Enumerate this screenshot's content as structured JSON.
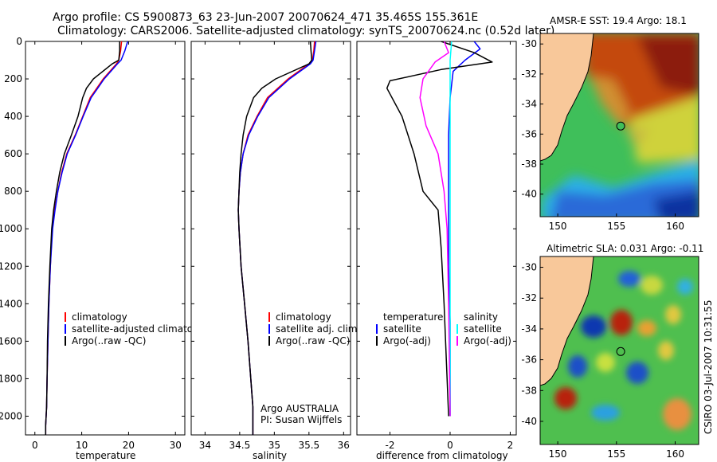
{
  "header": {
    "title_line1": "Argo profile: CS 5900873_63 23-Jun-2007 20070624_471 35.465S 155.361E",
    "title_line2": "Climatology: CARS2006. Satellite-adjusted climatology: synTS_20070624.nc (0.52d later)"
  },
  "footer": {
    "argo_label": "Argo AUSTRALIA",
    "pi_label": "PI: Susan Wijffels",
    "stamp": "CSIRO 03-Jul-2007 10:31:55"
  },
  "colors": {
    "climatology": "#ff0000",
    "satellite": "#0000ff",
    "argo": "#000000",
    "salinity_satellite": "#00ffff",
    "salinity_argo": "#ff00ff",
    "land": "#f8c89a"
  },
  "chart_data": [
    {
      "type": "line",
      "name": "temperature-profile",
      "xlabel": "temperature",
      "ylabel": "depth",
      "xlim": [
        -2,
        32
      ],
      "ylim": [
        0,
        2100
      ],
      "xticks": [
        0,
        10,
        20,
        30
      ],
      "yticks": [
        0,
        200,
        400,
        600,
        800,
        1000,
        1200,
        1400,
        1600,
        1800,
        2000
      ],
      "legend": [
        "climatology",
        "satellite-adjusted climatology",
        "Argo(..raw -QC)"
      ],
      "series": [
        {
          "name": "climatology",
          "color": "#ff0000",
          "x": [
            18.5,
            18.3,
            17.9,
            17.4,
            14.6,
            13.2,
            11.8,
            10.2,
            8.6,
            6.8,
            5.7,
            4.9,
            4.2,
            3.7,
            3.3,
            3.0,
            2.8,
            2.6,
            2.5,
            2.4,
            2.3,
            2.3
          ],
          "y": [
            0,
            50,
            100,
            120,
            200,
            250,
            300,
            400,
            500,
            600,
            700,
            800,
            900,
            1000,
            1200,
            1400,
            1600,
            1800,
            1950,
            2000,
            2050,
            2100
          ]
        },
        {
          "name": "satellite-adjusted climatology",
          "color": "#0000ff",
          "x": [
            19.8,
            19.2,
            18.4,
            17.6,
            14.8,
            13.4,
            12.0,
            10.3,
            8.7,
            6.9,
            5.8,
            4.9,
            4.3,
            3.8,
            3.3,
            3.0,
            2.8,
            2.6,
            2.5,
            2.4,
            2.3,
            2.3
          ],
          "y": [
            0,
            50,
            100,
            120,
            200,
            250,
            300,
            400,
            500,
            600,
            700,
            800,
            900,
            1000,
            1200,
            1400,
            1600,
            1800,
            1950,
            2000,
            2050,
            2100
          ]
        },
        {
          "name": "Argo(..raw -QC)",
          "color": "#000000",
          "x": [
            18.1,
            18.1,
            17.9,
            16.5,
            12.5,
            11.0,
            10.2,
            9.2,
            7.8,
            6.3,
            5.3,
            4.6,
            4.0,
            3.6,
            3.2,
            2.9,
            2.7,
            2.6,
            2.5,
            2.4,
            2.3,
            2.3
          ],
          "y": [
            0,
            50,
            100,
            120,
            200,
            250,
            300,
            400,
            500,
            600,
            700,
            800,
            900,
            1000,
            1200,
            1400,
            1600,
            1800,
            1950,
            2000,
            2050,
            2100
          ]
        }
      ]
    },
    {
      "type": "line",
      "name": "salinity-profile",
      "xlabel": "salinity",
      "ylabel": "depth",
      "xlim": [
        33.8,
        36.1
      ],
      "ylim": [
        0,
        2100
      ],
      "xticks": [
        34,
        34.5,
        35,
        35.5,
        36
      ],
      "yticks": [
        0,
        200,
        400,
        600,
        800,
        1000,
        1200,
        1400,
        1600,
        1800,
        2000
      ],
      "legend": [
        "climatology",
        "satellite adj. clim.",
        "Argo(..raw -QC)"
      ],
      "series": [
        {
          "name": "climatology",
          "color": "#ff0000",
          "x": [
            35.58,
            35.57,
            35.55,
            35.5,
            35.2,
            35.05,
            34.9,
            34.75,
            34.62,
            34.55,
            34.51,
            34.49,
            34.48,
            34.49,
            34.52,
            34.57,
            34.62,
            34.66,
            34.69,
            34.69,
            34.69,
            34.69
          ],
          "y": [
            0,
            50,
            100,
            120,
            200,
            250,
            300,
            400,
            500,
            600,
            700,
            800,
            900,
            1000,
            1200,
            1400,
            1600,
            1800,
            1950,
            2000,
            2050,
            2100
          ]
        },
        {
          "name": "satellite adj. clim.",
          "color": "#0000ff",
          "x": [
            35.6,
            35.58,
            35.56,
            35.52,
            35.22,
            35.07,
            34.92,
            34.76,
            34.63,
            34.55,
            34.51,
            34.49,
            34.48,
            34.49,
            34.52,
            34.57,
            34.62,
            34.66,
            34.69,
            34.69,
            34.69,
            34.69
          ],
          "y": [
            0,
            50,
            100,
            120,
            200,
            250,
            300,
            400,
            500,
            600,
            700,
            800,
            900,
            1000,
            1200,
            1400,
            1600,
            1800,
            1950,
            2000,
            2050,
            2100
          ]
        },
        {
          "name": "Argo(..raw -QC)",
          "color": "#000000",
          "x": [
            35.52,
            35.53,
            35.54,
            35.5,
            35.02,
            34.82,
            34.7,
            34.6,
            34.55,
            34.52,
            34.5,
            34.49,
            34.48,
            34.49,
            34.52,
            34.57,
            34.62,
            34.66,
            34.69,
            34.69,
            34.69,
            34.69
          ],
          "y": [
            0,
            50,
            100,
            120,
            200,
            250,
            300,
            400,
            500,
            600,
            700,
            800,
            900,
            1000,
            1200,
            1400,
            1600,
            1800,
            1950,
            2000,
            2050,
            2100
          ]
        }
      ]
    },
    {
      "type": "line",
      "name": "difference-profile",
      "xlabel": "difference from climatology",
      "ylabel": "depth",
      "xlim": [
        -3.1,
        2.2
      ],
      "ylim": [
        0,
        2100
      ],
      "xticks": [
        -2,
        0,
        2
      ],
      "yticks": [
        0,
        200,
        400,
        600,
        800,
        1000,
        1200,
        1400,
        1600,
        1800,
        2000
      ],
      "legend_title_temperature": "temperature",
      "legend_title_salinity": "salinity",
      "legend_temperature": [
        "satellite",
        "Argo(-adj)"
      ],
      "legend_salinity": [
        "satellite",
        "Argo(-adj)"
      ],
      "series": [
        {
          "name": "temperature satellite",
          "color": "#0000ff",
          "x": [
            0.8,
            1.0,
            0.5,
            0.1,
            0.0,
            -0.05,
            -0.05,
            -0.05,
            -0.05,
            0.0,
            0.0,
            0.0
          ],
          "y": [
            0,
            40,
            100,
            160,
            300,
            500,
            800,
            1000,
            1200,
            1500,
            1800,
            2000
          ]
        },
        {
          "name": "temperature Argo(-adj)",
          "color": "#000000",
          "x": [
            -0.3,
            0.8,
            1.4,
            -0.3,
            -2.0,
            -2.1,
            -1.6,
            -1.2,
            -0.9,
            -0.4,
            -0.3,
            -0.2,
            -0.15,
            -0.1,
            -0.05
          ],
          "y": [
            0,
            60,
            110,
            150,
            210,
            250,
            400,
            600,
            800,
            900,
            1100,
            1400,
            1600,
            1800,
            2000
          ]
        },
        {
          "name": "salinity satellite",
          "color": "#00ffff",
          "x": [
            0.05,
            0.0,
            0.0,
            0.0,
            0.0,
            0.0,
            0.0
          ],
          "y": [
            0,
            100,
            400,
            800,
            1200,
            1600,
            2000
          ]
        },
        {
          "name": "salinity Argo(-adj)",
          "color": "#ff00ff",
          "x": [
            -0.2,
            -0.05,
            -0.5,
            -0.9,
            -1.0,
            -0.8,
            -0.4,
            -0.2,
            -0.1,
            -0.05,
            0.0
          ],
          "y": [
            0,
            60,
            110,
            200,
            300,
            450,
            600,
            800,
            1000,
            1400,
            2000
          ]
        }
      ]
    },
    {
      "type": "heatmap",
      "name": "sst-map",
      "title": "AMSR-E SST: 19.4 Argo: 18.1",
      "xlim": [
        148.5,
        162
      ],
      "ylim": [
        -41.5,
        -29.3
      ],
      "xticks": [
        150,
        155,
        160
      ],
      "yticks": [
        -30,
        -32,
        -34,
        -36,
        -38,
        -40
      ],
      "marker": {
        "lon": 155.361,
        "lat": -35.465
      }
    },
    {
      "type": "heatmap",
      "name": "sla-map",
      "title": "Altimetric SLA: 0.031 Argo: -0.11",
      "xlim": [
        148.5,
        162
      ],
      "ylim": [
        -41.5,
        -29.3
      ],
      "xticks": [
        150,
        155,
        160
      ],
      "yticks": [
        -30,
        -32,
        -34,
        -36,
        -38,
        -40
      ],
      "marker": {
        "lon": 155.361,
        "lat": -35.465
      }
    }
  ]
}
